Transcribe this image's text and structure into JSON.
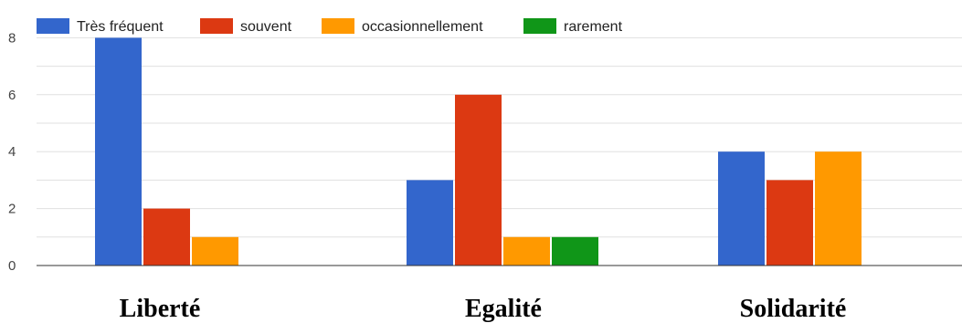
{
  "chart_data": {
    "type": "bar",
    "categories": [
      "Liberté",
      "Egalité",
      "Solidarité"
    ],
    "series": [
      {
        "name": "Très fréquent",
        "color": "#3366cc",
        "values": [
          8,
          3,
          4
        ]
      },
      {
        "name": "souvent",
        "color": "#dc3912",
        "values": [
          2,
          6,
          3
        ]
      },
      {
        "name": "occasionnellement",
        "color": "#ff9900",
        "values": [
          1,
          1,
          4
        ]
      },
      {
        "name": "rarement",
        "color": "#109618",
        "values": [
          0,
          1,
          0
        ]
      }
    ],
    "yticks": [
      "0",
      "2",
      "4",
      "6",
      "8"
    ],
    "ylim": [
      0,
      8
    ],
    "legend_position": "top-left",
    "grid": true
  }
}
